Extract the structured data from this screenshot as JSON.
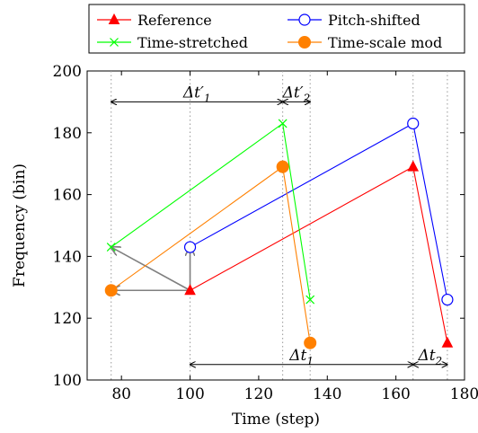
{
  "chart_data": {
    "type": "line",
    "xlabel": "Time (step)",
    "ylabel": "Frequency (bin)",
    "xlim": [
      70,
      180
    ],
    "ylim": [
      100,
      200
    ],
    "xticks": [
      80,
      100,
      120,
      140,
      160,
      180
    ],
    "yticks": [
      100,
      120,
      140,
      160,
      180,
      200
    ],
    "grid": false,
    "legend_position": "top",
    "series": [
      {
        "name": "Reference",
        "color": "#ff0000",
        "marker": "triangle",
        "points": [
          [
            100,
            129
          ],
          [
            165,
            169
          ],
          [
            175,
            112
          ]
        ]
      },
      {
        "name": "Pitch-shifted",
        "color": "#0000ff",
        "marker": "open-circle",
        "points": [
          [
            100,
            143
          ],
          [
            165,
            183
          ],
          [
            175,
            126
          ]
        ]
      },
      {
        "name": "Time-stretched",
        "color": "#00ff00",
        "marker": "cross",
        "points": [
          [
            77,
            143
          ],
          [
            127,
            183
          ],
          [
            135,
            126
          ]
        ]
      },
      {
        "name": "Time-scale mod",
        "color": "#ff8000",
        "marker": "filled-circle",
        "points": [
          [
            77,
            129
          ],
          [
            127,
            169
          ],
          [
            135,
            112
          ]
        ]
      }
    ],
    "transform_arrows": [
      {
        "from": [
          100,
          129
        ],
        "to": [
          77,
          143
        ]
      },
      {
        "from": [
          100,
          129
        ],
        "to": [
          77,
          129
        ]
      },
      {
        "from": [
          100,
          129
        ],
        "to": [
          100,
          143
        ]
      }
    ],
    "intervals": [
      {
        "label": "Δt′",
        "subscript": "1",
        "from": 77,
        "to": 127,
        "y": 190
      },
      {
        "label": "Δt′",
        "subscript": "2",
        "from": 127,
        "to": 135,
        "y": 190
      },
      {
        "label": "Δt",
        "subscript": "1",
        "from": 100,
        "to": 165,
        "y": 105
      },
      {
        "label": "Δt",
        "subscript": "2",
        "from": 165,
        "to": 175,
        "y": 105
      }
    ],
    "guide_lines_x": [
      77,
      100,
      127,
      135,
      165,
      175
    ]
  }
}
